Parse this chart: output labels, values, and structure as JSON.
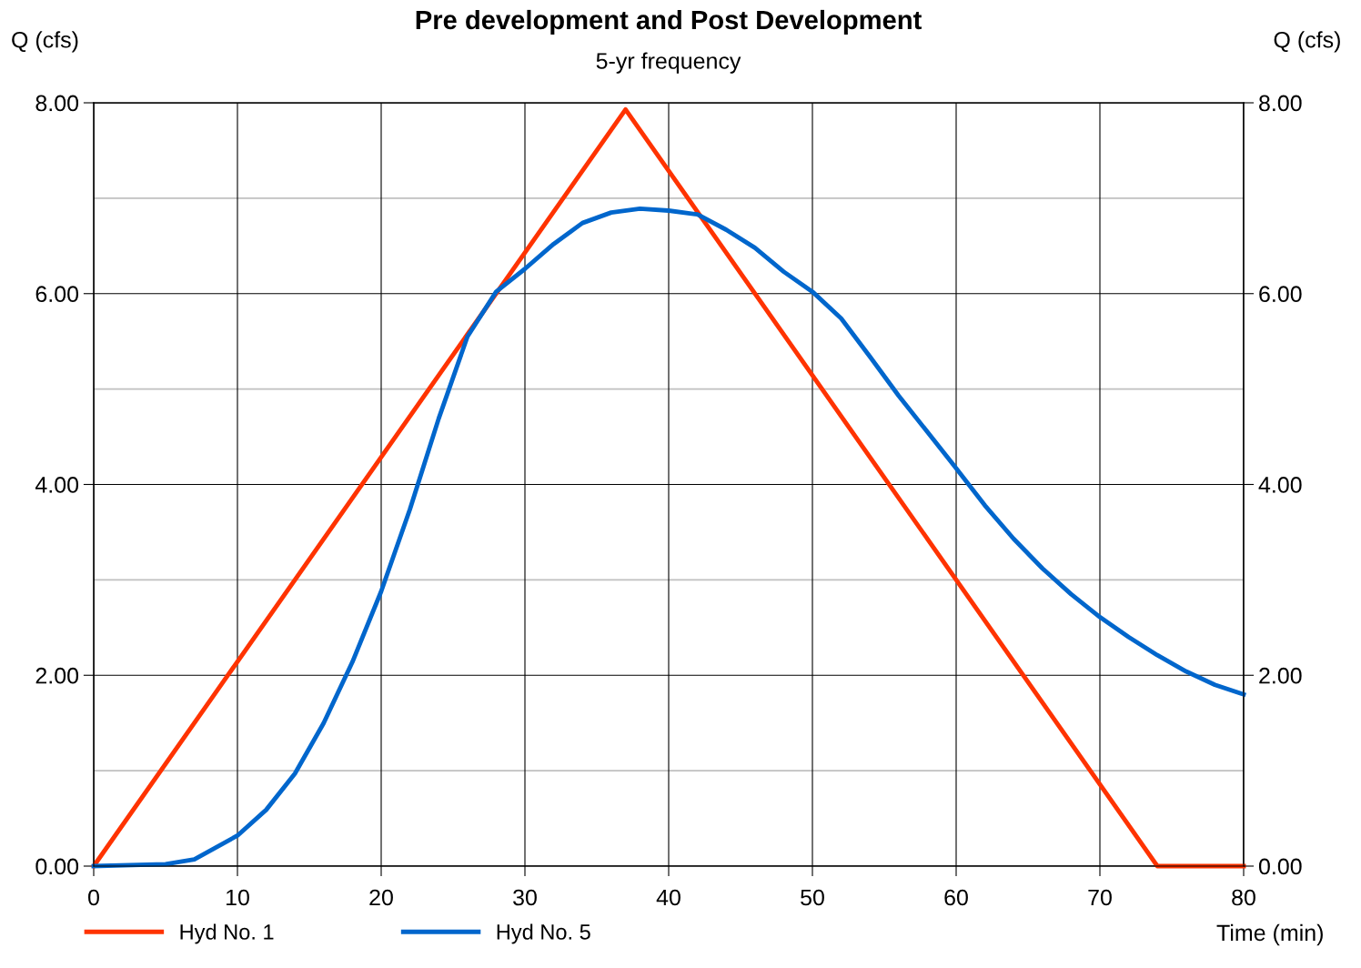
{
  "chart_data": {
    "type": "line",
    "title": "Pre development and Post Development",
    "subtitle": "5-yr frequency",
    "xlabel": "Time (min)",
    "ylabel": "Q (cfs)",
    "y2label": "Q (cfs)",
    "xlim": [
      0,
      80
    ],
    "xticks": [
      0,
      10,
      20,
      30,
      40,
      50,
      60,
      70,
      80
    ],
    "ylim": [
      0,
      8
    ],
    "yticks": [
      {
        "value": 0,
        "label": "0.00"
      },
      {
        "value": 2,
        "label": "2.00"
      },
      {
        "value": 4,
        "label": "4.00"
      },
      {
        "value": 6,
        "label": "6.00"
      },
      {
        "value": 8,
        "label": "8.00"
      }
    ],
    "y2lim": [
      0,
      8
    ],
    "y2ticks": [
      {
        "value": 0,
        "label": "0.00"
      },
      {
        "value": 2,
        "label": "2.00"
      },
      {
        "value": 4,
        "label": "4.00"
      },
      {
        "value": 6,
        "label": "6.00"
      },
      {
        "value": 8,
        "label": "8.00"
      }
    ],
    "grid": true,
    "legend": "bottom",
    "marker": "none",
    "line_style": "solid",
    "ref_lines": [
      {
        "axis": "y",
        "value": 1,
        "color": "#c0c0c0"
      },
      {
        "axis": "y",
        "value": 3,
        "color": "#c0c0c0"
      },
      {
        "axis": "y",
        "value": 5,
        "color": "#c0c0c0"
      },
      {
        "axis": "y",
        "value": 7,
        "color": "#c0c0c0"
      }
    ],
    "series": [
      {
        "name": "Hyd No. 1",
        "color": "#ff3300",
        "x": [
          0,
          37,
          74,
          80
        ],
        "values": [
          0,
          7.93,
          0,
          0
        ]
      },
      {
        "name": "Hyd No. 5",
        "color": "#0066cc",
        "x": [
          0,
          5,
          7,
          10,
          12,
          14,
          16,
          18,
          20,
          22,
          24,
          26,
          28,
          30,
          32,
          34,
          36,
          38,
          40,
          42,
          44,
          46,
          48,
          50,
          52,
          54,
          56,
          58,
          60,
          62,
          64,
          66,
          68,
          70,
          72,
          74,
          76,
          78,
          80
        ],
        "values": [
          0,
          0.02,
          0.07,
          0.32,
          0.59,
          0.97,
          1.5,
          2.14,
          2.88,
          3.74,
          4.69,
          5.55,
          6.02,
          6.26,
          6.52,
          6.74,
          6.85,
          6.89,
          6.87,
          6.83,
          6.67,
          6.48,
          6.23,
          6.02,
          5.74,
          5.34,
          4.93,
          4.55,
          4.17,
          3.78,
          3.43,
          3.12,
          2.85,
          2.61,
          2.4,
          2.21,
          2.04,
          1.9,
          1.8
        ]
      }
    ]
  }
}
